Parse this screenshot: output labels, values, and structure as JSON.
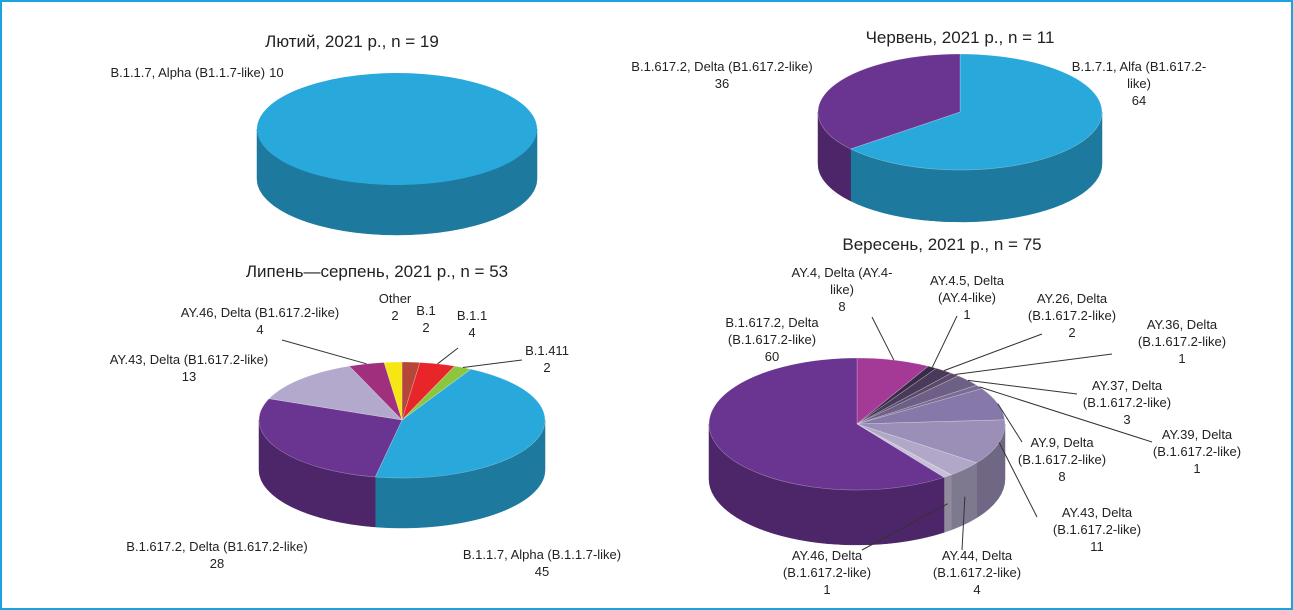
{
  "chart_data": [
    {
      "type": "pie",
      "title": "Лютий, 2021 р., n = 19",
      "categories": [
        "B.1.1.7, Alpha (B1.1.7-like)"
      ],
      "values": [
        10
      ],
      "colors": [
        "#29a8dc"
      ]
    },
    {
      "type": "pie",
      "title": "Червень, 2021 р., n = 11",
      "categories": [
        "B.1.7.1, Alfa (B1.617.2-like)",
        "B.1.617.2, Delta (B1.617.2-like)"
      ],
      "values": [
        64,
        36
      ],
      "colors": [
        "#29a8dc",
        "#6a3590"
      ]
    },
    {
      "type": "pie",
      "title": "Липень—серпень, 2021 р., n = 53",
      "categories": [
        "B.1",
        "B.1.1",
        "B.1.411",
        "B.1.1.7, Alpha (B.1.1.7-like)",
        "B.1.617.2, Delta (B1.617.2-like)",
        "AY.43, Delta (B1.617.2-like)",
        "AY.46, Delta (B1.617.2-like)",
        "Other"
      ],
      "values": [
        2,
        4,
        2,
        45,
        28,
        13,
        4,
        2
      ],
      "colors": [
        "#b5473a",
        "#e8262a",
        "#8cc63f",
        "#29a8dc",
        "#6a3590",
        "#b3a9cc",
        "#a0307e",
        "#f5e614"
      ]
    },
    {
      "type": "pie",
      "title": "Вересень, 2021 р., n = 75",
      "categories": [
        "AY.4, Delta (AY.4-like)",
        "AY.4.5, Delta (AY.4-like)",
        "AY.26, Delta (B.1.617.2-like)",
        "AY.36, Delta (B.1.617.2-like)",
        "AY.37, Delta (B.1.617.2-like)",
        "AY.39, Delta (B.1.617.2-like)",
        "AY.9, Delta (B.1.617.2-like)",
        "AY.43, Delta (B.1.617.2-like)",
        "AY.44, Delta (B.1.617.2-like)",
        "AY.46, Delta (B.1.617.2-like)",
        "B.1.617.2, Delta (B.1.617.2-like)"
      ],
      "values": [
        8,
        1,
        2,
        1,
        3,
        1,
        8,
        11,
        4,
        1,
        60
      ],
      "colors": [
        "#a53a96",
        "#3a2a4a",
        "#4a3a5a",
        "#5a4a6a",
        "#6e5f86",
        "#7a6c92",
        "#8678a8",
        "#9b8fb8",
        "#b1a8c8",
        "#c8c0d8",
        "#6a3590"
      ]
    }
  ]
}
